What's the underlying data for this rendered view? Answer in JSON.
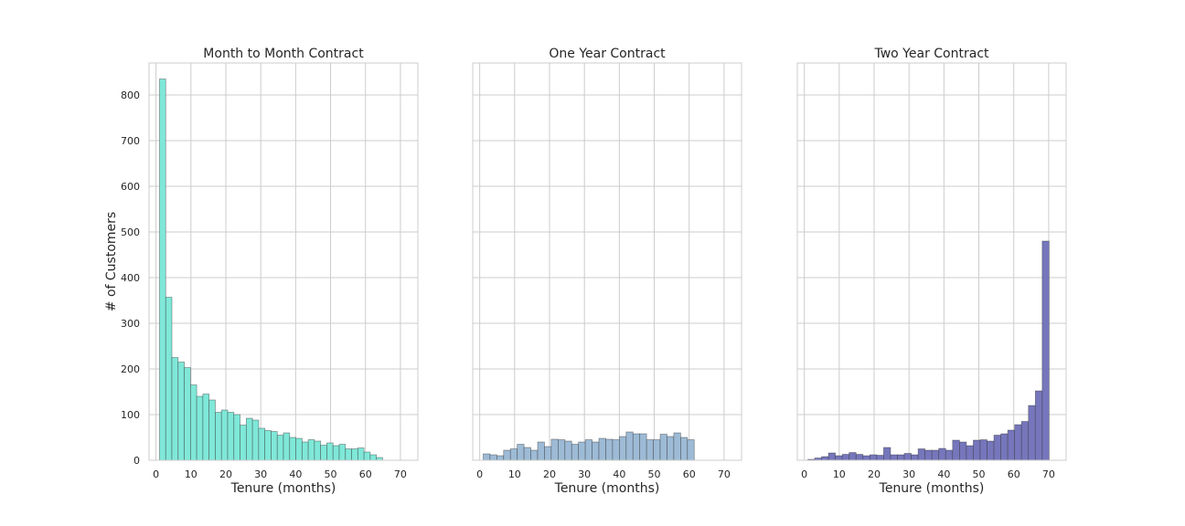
{
  "chart_data": [
    {
      "type": "bar",
      "title": "Month to Month Contract",
      "xlabel": "Tenure (months)",
      "ylabel": "# of Customers",
      "color": "#7fe8d8",
      "xlim": [
        -2,
        75
      ],
      "ylim": [
        0,
        870
      ],
      "bin_width": 1.775,
      "bin_start": 1,
      "xticks": [
        0,
        10,
        20,
        30,
        40,
        50,
        60,
        70
      ],
      "yticks": [
        0,
        100,
        200,
        300,
        400,
        500,
        600,
        700,
        800
      ],
      "grid": true,
      "values": [
        835,
        357,
        225,
        215,
        203,
        165,
        140,
        145,
        132,
        105,
        110,
        105,
        100,
        77,
        92,
        88,
        70,
        65,
        63,
        55,
        60,
        50,
        48,
        40,
        45,
        42,
        33,
        38,
        32,
        35,
        25,
        25,
        27,
        18,
        12,
        6
      ]
    },
    {
      "type": "bar",
      "title": "One Year Contract",
      "xlabel": "Tenure (months)",
      "ylabel": "",
      "color": "#9dbbd6",
      "xlim": [
        -2,
        75
      ],
      "ylim": [
        0,
        870
      ],
      "bin_width": 1.95,
      "bin_start": 1,
      "xticks": [
        0,
        10,
        20,
        30,
        40,
        50,
        60,
        70
      ],
      "yticks": [
        0,
        100,
        200,
        300,
        400,
        500,
        600,
        700,
        800
      ],
      "grid": true,
      "values": [
        14,
        12,
        10,
        22,
        25,
        35,
        28,
        22,
        40,
        30,
        46,
        45,
        42,
        35,
        40,
        45,
        40,
        48,
        46,
        45,
        52,
        62,
        58,
        58,
        45,
        45,
        57,
        52,
        60,
        50,
        45
      ]
    },
    {
      "type": "bar",
      "title": "Two Year Contract",
      "xlabel": "Tenure (months)",
      "ylabel": "",
      "color": "#7676bc",
      "xlim": [
        -2,
        75
      ],
      "ylim": [
        0,
        870
      ],
      "bin_width": 1.975,
      "bin_start": 1,
      "xticks": [
        0,
        10,
        20,
        30,
        40,
        50,
        60,
        70
      ],
      "yticks": [
        0,
        100,
        200,
        300,
        400,
        500,
        600,
        700,
        800
      ],
      "grid": true,
      "values": [
        2,
        5,
        8,
        16,
        10,
        13,
        17,
        13,
        10,
        12,
        11,
        28,
        12,
        12,
        15,
        12,
        25,
        22,
        22,
        26,
        22,
        44,
        40,
        32,
        44,
        45,
        42,
        55,
        58,
        66,
        78,
        85,
        120,
        152,
        480
      ]
    }
  ]
}
